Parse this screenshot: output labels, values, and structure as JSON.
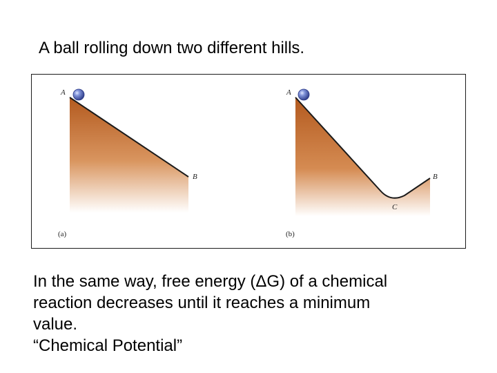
{
  "title": "A ball rolling down two different hills.",
  "figure": {
    "panel_a": {
      "caption": "(a)",
      "start_label": "A",
      "end_label": "B"
    },
    "panel_b": {
      "caption": "(b)",
      "start_label": "A",
      "minimum_label": "C",
      "end_label": "B"
    },
    "colors": {
      "hill_top": "#b35a1f",
      "hill_bottom": "#ffffff",
      "ball": "#4a5fb0",
      "outline": "#1a1a1a"
    }
  },
  "body": {
    "line1": "In the same way, free energy (ΔG) of a chemical",
    "line2": "reaction decreases until it reaches a minimum",
    "line3": "value.",
    "line4": "“Chemical Potential”"
  }
}
